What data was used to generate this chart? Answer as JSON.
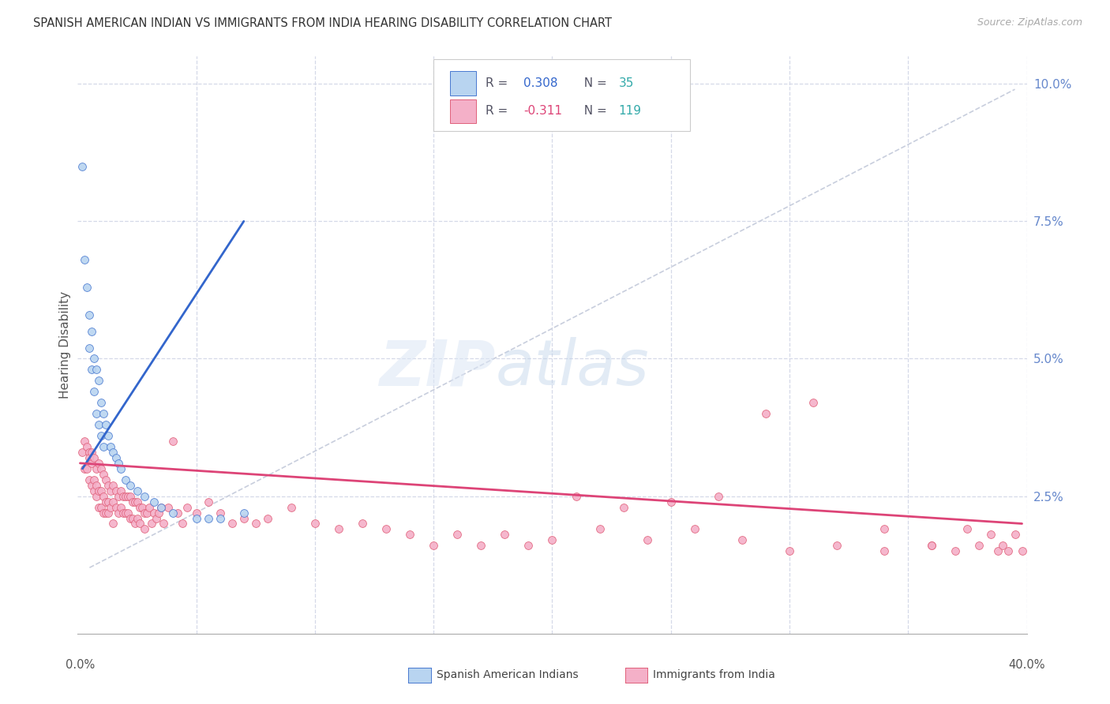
{
  "title": "SPANISH AMERICAN INDIAN VS IMMIGRANTS FROM INDIA HEARING DISABILITY CORRELATION CHART",
  "source": "Source: ZipAtlas.com",
  "ylabel": "Hearing Disability",
  "legend1_r_prefix": "R = ",
  "legend1_r_val": "0.308",
  "legend1_n_prefix": "N = ",
  "legend1_n_val": "35",
  "legend2_r_prefix": "R = ",
  "legend2_r_val": "-0.311",
  "legend2_n_prefix": "N = ",
  "legend2_n_val": "119",
  "legend1_label": "Spanish American Indians",
  "legend2_label": "Immigrants from India",
  "blue_fill": "#b8d4f0",
  "blue_edge": "#4878d0",
  "pink_fill": "#f4b0c8",
  "pink_edge": "#e0607a",
  "blue_line_color": "#3366cc",
  "pink_line_color": "#dd4477",
  "dashed_color": "#c8cedd",
  "grid_color": "#d5d9e8",
  "title_color": "#333333",
  "source_color": "#aaaaaa",
  "right_tick_color": "#6688cc",
  "xlabel_color": "#555555",
  "ylabel_color": "#555555",
  "r_val_blue_color": "#3366cc",
  "r_val_pink_color": "#dd4477",
  "n_val_color": "#33aaaa",
  "r_prefix_color": "#555566",
  "n_prefix_color": "#555566",
  "blue_scatter_x": [
    0.002,
    0.003,
    0.004,
    0.005,
    0.005,
    0.006,
    0.006,
    0.007,
    0.007,
    0.008,
    0.008,
    0.009,
    0.009,
    0.01,
    0.01,
    0.011,
    0.011,
    0.012,
    0.013,
    0.014,
    0.015,
    0.016,
    0.017,
    0.018,
    0.02,
    0.022,
    0.025,
    0.028,
    0.032,
    0.035,
    0.04,
    0.05,
    0.055,
    0.06,
    0.07
  ],
  "blue_scatter_y": [
    0.085,
    0.068,
    0.063,
    0.058,
    0.052,
    0.055,
    0.048,
    0.05,
    0.044,
    0.048,
    0.04,
    0.046,
    0.038,
    0.042,
    0.036,
    0.04,
    0.034,
    0.038,
    0.036,
    0.034,
    0.033,
    0.032,
    0.031,
    0.03,
    0.028,
    0.027,
    0.026,
    0.025,
    0.024,
    0.023,
    0.022,
    0.021,
    0.021,
    0.021,
    0.022
  ],
  "pink_scatter_x": [
    0.002,
    0.003,
    0.003,
    0.004,
    0.004,
    0.005,
    0.005,
    0.005,
    0.006,
    0.006,
    0.006,
    0.007,
    0.007,
    0.007,
    0.008,
    0.008,
    0.008,
    0.009,
    0.009,
    0.009,
    0.01,
    0.01,
    0.01,
    0.011,
    0.011,
    0.011,
    0.012,
    0.012,
    0.012,
    0.013,
    0.013,
    0.013,
    0.014,
    0.014,
    0.015,
    0.015,
    0.015,
    0.016,
    0.016,
    0.017,
    0.017,
    0.018,
    0.018,
    0.019,
    0.019,
    0.02,
    0.02,
    0.021,
    0.021,
    0.022,
    0.022,
    0.023,
    0.023,
    0.024,
    0.024,
    0.025,
    0.025,
    0.026,
    0.026,
    0.027,
    0.028,
    0.028,
    0.029,
    0.03,
    0.031,
    0.032,
    0.033,
    0.034,
    0.035,
    0.036,
    0.038,
    0.04,
    0.042,
    0.044,
    0.046,
    0.05,
    0.055,
    0.06,
    0.065,
    0.07,
    0.075,
    0.08,
    0.09,
    0.1,
    0.11,
    0.12,
    0.13,
    0.14,
    0.15,
    0.16,
    0.17,
    0.18,
    0.19,
    0.2,
    0.22,
    0.24,
    0.26,
    0.28,
    0.3,
    0.32,
    0.34,
    0.36,
    0.37,
    0.375,
    0.38,
    0.385,
    0.388,
    0.39,
    0.392,
    0.395,
    0.398,
    0.36,
    0.34,
    0.31,
    0.29,
    0.27,
    0.25,
    0.23,
    0.21
  ],
  "pink_scatter_y": [
    0.033,
    0.035,
    0.03,
    0.034,
    0.03,
    0.033,
    0.028,
    0.032,
    0.031,
    0.027,
    0.033,
    0.032,
    0.028,
    0.026,
    0.03,
    0.027,
    0.025,
    0.031,
    0.026,
    0.023,
    0.03,
    0.026,
    0.023,
    0.029,
    0.025,
    0.022,
    0.028,
    0.024,
    0.022,
    0.027,
    0.024,
    0.022,
    0.026,
    0.023,
    0.027,
    0.024,
    0.02,
    0.026,
    0.023,
    0.025,
    0.022,
    0.026,
    0.023,
    0.025,
    0.022,
    0.025,
    0.022,
    0.025,
    0.022,
    0.025,
    0.021,
    0.024,
    0.021,
    0.024,
    0.02,
    0.024,
    0.021,
    0.023,
    0.02,
    0.023,
    0.022,
    0.019,
    0.022,
    0.023,
    0.02,
    0.022,
    0.021,
    0.022,
    0.023,
    0.02,
    0.023,
    0.035,
    0.022,
    0.02,
    0.023,
    0.022,
    0.024,
    0.022,
    0.02,
    0.021,
    0.02,
    0.021,
    0.023,
    0.02,
    0.019,
    0.02,
    0.019,
    0.018,
    0.016,
    0.018,
    0.016,
    0.018,
    0.016,
    0.017,
    0.019,
    0.017,
    0.019,
    0.017,
    0.015,
    0.016,
    0.015,
    0.016,
    0.015,
    0.019,
    0.016,
    0.018,
    0.015,
    0.016,
    0.015,
    0.018,
    0.015,
    0.016,
    0.019,
    0.042,
    0.04,
    0.025,
    0.024,
    0.023,
    0.025
  ],
  "blue_line_x": [
    0.002,
    0.07
  ],
  "blue_line_y": [
    0.03,
    0.075
  ],
  "pink_line_x": [
    0.001,
    0.398
  ],
  "pink_line_y": [
    0.031,
    0.02
  ],
  "dashed_line_x": [
    0.005,
    0.395
  ],
  "dashed_line_y": [
    0.012,
    0.099
  ],
  "xlim": [
    0.0,
    0.4
  ],
  "ylim": [
    0.0,
    0.105
  ],
  "xticks_minor": [
    0.05,
    0.1,
    0.15,
    0.2,
    0.25,
    0.3,
    0.35,
    0.4
  ],
  "yticks_right": [
    0.025,
    0.05,
    0.075,
    0.1
  ],
  "yticklabels_right": [
    "2.5%",
    "5.0%",
    "7.5%",
    "10.0%"
  ]
}
